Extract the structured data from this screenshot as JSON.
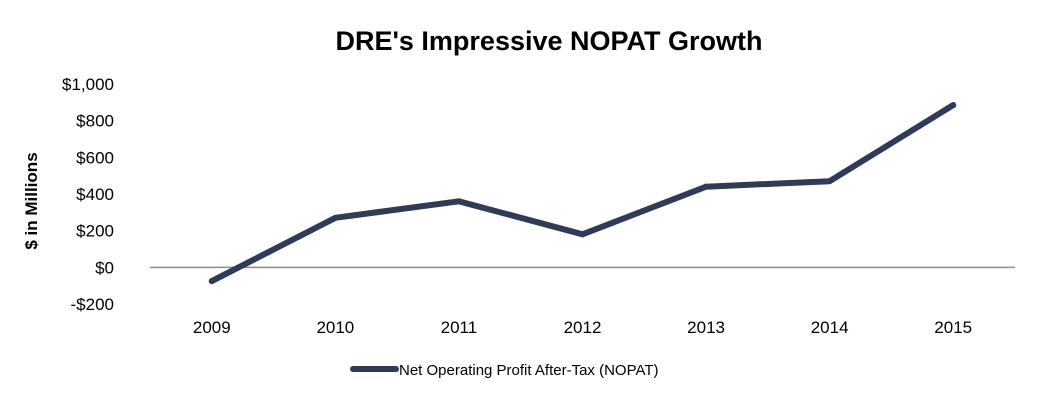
{
  "chart_data": {
    "type": "line",
    "title": "DRE's Impressive NOPAT Growth",
    "xlabel": "",
    "ylabel": "$ in Millions",
    "categories": [
      "2009",
      "2010",
      "2011",
      "2012",
      "2013",
      "2014",
      "2015"
    ],
    "series": [
      {
        "name": "Net Operating Profit After-Tax (NOPAT)",
        "values": [
          -75,
          270,
          360,
          180,
          440,
          470,
          885
        ],
        "color": "#2e3c58"
      }
    ],
    "ylim": [
      -200,
      1000
    ],
    "yticks": [
      -200,
      0,
      200,
      400,
      600,
      800,
      1000
    ],
    "ytick_labels": [
      "-$200",
      "$0",
      "$200",
      "$400",
      "$600",
      "$800",
      "$1,000"
    ],
    "grid": false,
    "legend_position": "bottom"
  }
}
